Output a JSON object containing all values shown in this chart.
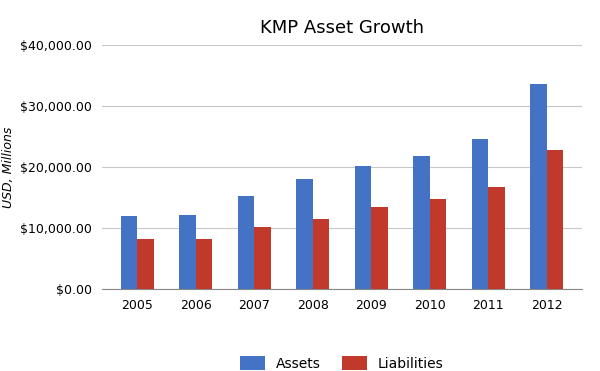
{
  "title": "KMP Asset Growth",
  "ylabel": "USD, Millions",
  "years": [
    "2005",
    "2006",
    "2007",
    "2008",
    "2009",
    "2010",
    "2011",
    "2012"
  ],
  "assets": [
    12000,
    12200,
    15200,
    18000,
    20200,
    21800,
    24500,
    33500
  ],
  "liabilities": [
    8200,
    8200,
    10200,
    11500,
    13500,
    14700,
    16700,
    22700
  ],
  "bar_color_assets": "#4472C4",
  "bar_color_liabilities": "#C0392B",
  "ylim": [
    0,
    40000
  ],
  "yticks": [
    0,
    10000,
    20000,
    30000,
    40000
  ],
  "background_color": "#ffffff",
  "grid_color": "#c8c8c8",
  "title_fontsize": 13,
  "label_fontsize": 9,
  "tick_fontsize": 9,
  "legend_labels": [
    "Assets",
    "Liabilities"
  ],
  "bar_width": 0.28
}
